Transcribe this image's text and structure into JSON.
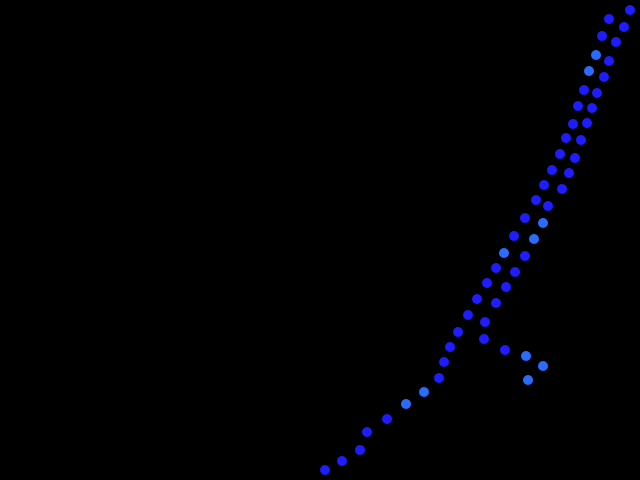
{
  "background_color": "#000000",
  "colors": {
    "dot_primary": "#1f1cff",
    "dot_secondary": "#2a6cff"
  },
  "scene": {
    "description_words": "blue-dots-on-black"
  }
}
